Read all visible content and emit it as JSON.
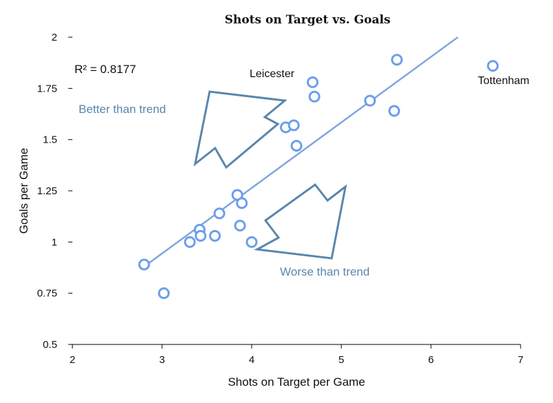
{
  "chart_data": {
    "type": "scatter",
    "title": "Shots on Target vs. Goals",
    "xlabel": "Shots on Target per Game",
    "ylabel": "Goals per Game",
    "xlim": [
      2,
      7
    ],
    "ylim": [
      0.5,
      2
    ],
    "x_ticks": [
      2,
      3,
      4,
      5,
      6,
      7
    ],
    "x_tick_labels": [
      "2",
      "3",
      "4",
      "5",
      "6",
      "7"
    ],
    "y_ticks": [
      0.5,
      0.75,
      1,
      1.25,
      1.5,
      1.75,
      2
    ],
    "y_tick_labels": [
      "0.5",
      "0.75",
      "1",
      "1.25",
      "1.5",
      "1.75",
      "2"
    ],
    "grid": false,
    "legend": "none",
    "series": [
      {
        "points": [
          {
            "x": 2.8,
            "y": 0.89
          },
          {
            "x": 3.02,
            "y": 0.75
          },
          {
            "x": 3.31,
            "y": 1.0
          },
          {
            "x": 3.42,
            "y": 1.06
          },
          {
            "x": 3.43,
            "y": 1.03
          },
          {
            "x": 3.59,
            "y": 1.03
          },
          {
            "x": 3.64,
            "y": 1.14
          },
          {
            "x": 3.84,
            "y": 1.23
          },
          {
            "x": 3.87,
            "y": 1.08
          },
          {
            "x": 3.89,
            "y": 1.19
          },
          {
            "x": 4.0,
            "y": 1.0
          },
          {
            "x": 4.38,
            "y": 1.56
          },
          {
            "x": 4.47,
            "y": 1.57
          },
          {
            "x": 4.5,
            "y": 1.47
          },
          {
            "x": 4.68,
            "y": 1.78
          },
          {
            "x": 4.7,
            "y": 1.71
          },
          {
            "x": 5.32,
            "y": 1.69
          },
          {
            "x": 5.59,
            "y": 1.64
          },
          {
            "x": 5.62,
            "y": 1.89
          },
          {
            "x": 6.69,
            "y": 1.86
          }
        ]
      }
    ],
    "trendline": {
      "x": [
        2.8,
        6.3
      ],
      "y": [
        0.88,
        2.0
      ]
    },
    "r_squared_label": "R² = 0.8177",
    "annotations": {
      "leicester": "Leicester",
      "tottenham": "Tottenham",
      "better": "Better than trend",
      "worse": "Worse than trend"
    },
    "colors": {
      "marker": "#6d9eeb",
      "trendline": "#7ea6e0",
      "arrow": "#5a86ad",
      "axis": "#000000"
    }
  }
}
